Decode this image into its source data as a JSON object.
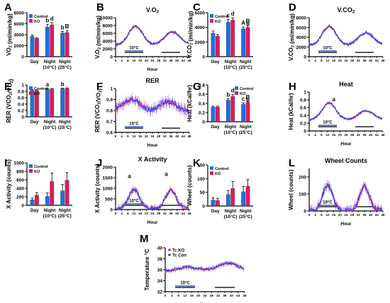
{
  "chart_data": [
    {
      "id": "A",
      "type": "bar",
      "panel_label": "A",
      "title": "",
      "ylabel": "VO₂ (ml/min/kg)",
      "ylim": [
        0,
        8000
      ],
      "yticks": [
        0,
        2000,
        4000,
        6000,
        8000
      ],
      "categories": [
        "Day",
        "Night (10°C)",
        "Night (25°C)"
      ],
      "series": [
        {
          "name": "Control",
          "values": [
            3700,
            5400,
            4300
          ],
          "errors": [
            250,
            500,
            300
          ]
        },
        {
          "name": "KO",
          "values": [
            3300,
            5800,
            4400
          ],
          "errors": [
            150,
            400,
            350
          ]
        }
      ],
      "annotations": [
        {
          "cat": 1,
          "s": 0,
          "text": "b"
        },
        {
          "cat": 1,
          "s": 1,
          "text": "d"
        },
        {
          "cat": 2,
          "s": 0,
          "text": "b"
        },
        {
          "cat": 2,
          "s": 1,
          "text": "B"
        }
      ],
      "legend": "top-left"
    },
    {
      "id": "B",
      "type": "line",
      "panel_label": "B",
      "title": "V.O₂",
      "ylabel": "V.O₂ (ml/min/kg)",
      "xlabel": "Hour",
      "ylim": [
        0,
        10000
      ],
      "yticks": [
        0,
        2000,
        4000,
        6000,
        8000,
        10000
      ],
      "xlim": [
        0,
        48
      ],
      "xticks": [
        0,
        4,
        8,
        12,
        16,
        20,
        24,
        28,
        32,
        36,
        40,
        44,
        48
      ],
      "base": 3000,
      "peaks": [
        {
          "c": 13,
          "w": 4.5,
          "h": 4800
        },
        {
          "c": 37,
          "w": 5,
          "h": 3300
        }
      ],
      "jitter": 450,
      "temp_label": "10°C",
      "cold_bar": [
        6,
        18
      ],
      "night_bars": [
        [
          6,
          18
        ],
        [
          30,
          42
        ]
      ],
      "annotations": []
    },
    {
      "id": "C",
      "type": "bar",
      "panel_label": "C",
      "title": "",
      "ylabel": "V.CO₂ (ml/min/kg)",
      "ylim": [
        0,
        6000
      ],
      "yticks": [
        0,
        2000,
        4000,
        6000
      ],
      "categories": [
        "Day",
        "Night (10°C)",
        "Night (25°C)"
      ],
      "series": [
        {
          "name": "Control",
          "values": [
            3200,
            4700,
            3800
          ],
          "errors": [
            300,
            400,
            250
          ]
        },
        {
          "name": "KO",
          "values": [
            2800,
            5000,
            4000
          ],
          "errors": [
            200,
            300,
            300
          ]
        }
      ],
      "annotations": [
        {
          "cat": 1,
          "s": 0,
          "text": "c"
        },
        {
          "cat": 1,
          "s": 1,
          "text": "d"
        },
        {
          "cat": 2,
          "s": 0,
          "text": "A"
        },
        {
          "cat": 2,
          "s": 1,
          "text": "B"
        },
        {
          "cat": 2,
          "s": 1,
          "text": "b",
          "below": true
        }
      ],
      "legend": "top-left"
    },
    {
      "id": "D",
      "type": "line",
      "panel_label": "D",
      "title": "V.CO₂",
      "ylabel": "V.CO₂ (ml/min/kg)",
      "xlabel": "",
      "ylim": [
        0,
        8000
      ],
      "yticks": [
        0,
        2000,
        4000,
        6000,
        8000
      ],
      "xlim": [
        0,
        48
      ],
      "xticks": [
        0,
        4,
        8,
        12,
        16,
        20,
        24,
        28,
        32,
        36,
        40,
        44,
        48
      ],
      "base": 2300,
      "peaks": [
        {
          "c": 13,
          "w": 4.5,
          "h": 3900
        },
        {
          "c": 37,
          "w": 5,
          "h": 2600
        }
      ],
      "jitter": 380,
      "temp_label": "10°C",
      "cold_bar": [
        6,
        18
      ],
      "night_bars": [
        [
          6,
          18
        ],
        [
          30,
          42
        ]
      ],
      "annotations": []
    },
    {
      "id": "E",
      "type": "bar",
      "panel_label": "E",
      "title": "",
      "ylabel": "RER (VCO₂/VO₂)",
      "ylim": [
        0,
        1.0
      ],
      "yticks": [
        0,
        0.2,
        0.4,
        0.6,
        0.8,
        1.0
      ],
      "categories": [
        "Day",
        "Night (10°C)",
        "Night (25°C)"
      ],
      "series": [
        {
          "name": "Control",
          "values": [
            0.84,
            0.87,
            0.88
          ],
          "errors": [
            0.02,
            0.02,
            0.02
          ]
        },
        {
          "name": "KO",
          "values": [
            0.82,
            0.87,
            0.89
          ],
          "errors": [
            0.02,
            0.02,
            0.02
          ]
        }
      ],
      "annotations": [
        {
          "cat": 1,
          "s": 0,
          "text": "a"
        },
        {
          "cat": 2,
          "s": 0,
          "text": "b"
        }
      ],
      "legend": "top-left"
    },
    {
      "id": "F",
      "type": "line",
      "panel_label": "F",
      "title": "RER",
      "ylabel": "RER (VCO₂/VO₂)",
      "xlabel": "Hour",
      "ylim": [
        0.6,
        1.0
      ],
      "yticks": [
        0.6,
        0.7,
        0.8,
        0.9,
        1.0
      ],
      "xlim": [
        0,
        48
      ],
      "xticks": [
        0,
        4,
        8,
        12,
        16,
        20,
        24,
        28,
        32,
        36,
        40,
        44,
        48
      ],
      "base": 0.78,
      "peaks": [
        {
          "c": 10,
          "w": 6,
          "h": 0.12
        },
        {
          "c": 34,
          "w": 6,
          "h": 0.1
        }
      ],
      "jitter": 0.05,
      "temp_label": "10°C",
      "cold_bar": [
        6,
        18
      ],
      "night_bars": [
        [
          6,
          18
        ],
        [
          30,
          42
        ]
      ],
      "annotations": []
    },
    {
      "id": "G",
      "type": "bar",
      "panel_label": "G",
      "title": "",
      "ylabel": "Heat (kCal/hr)",
      "ylim": [
        0,
        0.8
      ],
      "yticks": [
        0,
        0.2,
        0.4,
        0.6,
        0.8
      ],
      "categories": [
        "Day",
        "Night (10°C)",
        "Night (25°C)"
      ],
      "series": [
        {
          "name": "Control",
          "values": [
            0.32,
            0.47,
            0.38
          ],
          "errors": [
            0.02,
            0.03,
            0.03
          ]
        },
        {
          "name": "KO",
          "values": [
            0.32,
            0.55,
            0.42
          ],
          "errors": [
            0.02,
            0.04,
            0.03
          ]
        }
      ],
      "annotations": [
        {
          "cat": 1,
          "s": 0,
          "text": "b"
        },
        {
          "cat": 1,
          "s": 1,
          "text": "d"
        },
        {
          "cat": 2,
          "s": 0,
          "text": "c"
        },
        {
          "cat": 2,
          "s": 1,
          "text": "B"
        },
        {
          "cat": 2,
          "s": 1,
          "text": "b",
          "below": true
        }
      ],
      "legend": "top-right"
    },
    {
      "id": "H",
      "type": "line",
      "panel_label": "H",
      "title": "Heat",
      "ylabel": "Heat (kCal/hr)",
      "xlabel": "Hour",
      "ylim": [
        0,
        1.0
      ],
      "yticks": [
        0,
        0.2,
        0.4,
        0.6,
        0.8,
        1.0
      ],
      "xlim": [
        0,
        48
      ],
      "xticks": [
        0,
        4,
        8,
        12,
        16,
        20,
        24,
        28,
        32,
        36,
        40,
        44,
        48
      ],
      "base": 0.28,
      "peaks": [
        {
          "c": 13,
          "w": 4.5,
          "h": 0.44
        },
        {
          "c": 37,
          "w": 5,
          "h": 0.24
        }
      ],
      "jitter": 0.04,
      "temp_label": "10°C",
      "cold_bar": [
        6,
        18
      ],
      "night_bars": [
        [
          6,
          18
        ],
        [
          30,
          42
        ]
      ],
      "annotations": [
        {
          "x": 16,
          "y": 0.76,
          "text": "a"
        }
      ]
    },
    {
      "id": "I",
      "type": "bar",
      "panel_label": "I",
      "title": "",
      "ylabel": "X Activity (counts)",
      "ylim": [
        0,
        1000
      ],
      "yticks": [
        0,
        200,
        400,
        600,
        800,
        1000
      ],
      "categories": [
        "Day",
        "Night (10°C)",
        "Night (25°C)"
      ],
      "series": [
        {
          "name": "Control",
          "values": [
            130,
            210,
            340
          ],
          "errors": [
            40,
            80,
            150
          ]
        },
        {
          "name": "KO",
          "values": [
            240,
            560,
            590
          ],
          "errors": [
            60,
            200,
            180
          ]
        }
      ],
      "annotations": [],
      "legend": "top-left"
    },
    {
      "id": "J",
      "type": "line",
      "panel_label": "J",
      "title": "X Activity",
      "ylabel": "X Activity (counts)",
      "xlabel": "Hour",
      "ylim": [
        0,
        2000
      ],
      "yticks": [
        0,
        500,
        1000,
        1500,
        2000
      ],
      "xlim": [
        0,
        48
      ],
      "xticks": [
        0,
        4,
        8,
        12,
        16,
        20,
        24,
        28,
        32,
        36,
        40,
        44,
        48
      ],
      "base": 50,
      "peaks": [
        {
          "c": 12,
          "w": 3.5,
          "h": 900
        },
        {
          "c": 36,
          "w": 3.5,
          "h": 850
        }
      ],
      "jitter": 160,
      "temp_label": "10°C",
      "cold_bar": [
        6,
        18
      ],
      "night_bars": [
        [
          6,
          18
        ],
        [
          30,
          42
        ]
      ],
      "annotations": [
        {
          "x": 9,
          "y": 1480,
          "text": "a"
        },
        {
          "x": 33,
          "y": 1580,
          "text": "a"
        }
      ]
    },
    {
      "id": "K",
      "type": "bar",
      "panel_label": "K",
      "title": "",
      "ylabel": "Wheel (counts)",
      "ylim": [
        0,
        150
      ],
      "yticks": [
        0,
        50,
        100,
        150
      ],
      "categories": [
        "Day",
        "Night (10°C)",
        "Night (25°C)"
      ],
      "series": [
        {
          "name": "Control",
          "values": [
            22,
            42,
            52
          ],
          "errors": [
            8,
            15,
            20
          ]
        },
        {
          "name": "KO",
          "values": [
            20,
            64,
            72
          ],
          "errors": [
            8,
            25,
            25
          ]
        }
      ],
      "annotations": [],
      "legend": "top-left"
    },
    {
      "id": "L",
      "type": "line",
      "panel_label": "L",
      "title": "Wheel Counts",
      "ylabel": "Wheel (counts)",
      "xlabel": "Hour",
      "ylim": [
        0,
        250
      ],
      "yticks": [
        0,
        100,
        200
      ],
      "xlim": [
        0,
        48
      ],
      "xticks": [
        0,
        4,
        8,
        12,
        16,
        20,
        24,
        28,
        32,
        36,
        40,
        44,
        48
      ],
      "base": 3,
      "peaks": [
        {
          "c": 12,
          "w": 3.2,
          "h": 150
        },
        {
          "c": 36,
          "w": 3.2,
          "h": 140
        }
      ],
      "jitter": 28,
      "temp_label": "10°C",
      "cold_bar": [
        6,
        18
      ],
      "night_bars": [
        [
          6,
          18
        ],
        [
          30,
          42
        ]
      ],
      "annotations": []
    },
    {
      "id": "M",
      "type": "line",
      "panel_label": "M",
      "title": "",
      "ylabel": "Temperature °C",
      "xlabel": "Hour",
      "ylim": [
        32,
        40
      ],
      "yticks": [
        32,
        34,
        36,
        38,
        40
      ],
      "xlim": [
        0,
        48
      ],
      "xticks": [
        0,
        4,
        8,
        12,
        16,
        20,
        24,
        28,
        32,
        36,
        40,
        44,
        48
      ],
      "base": 35.8,
      "peaks": [
        {
          "c": 14,
          "w": 6,
          "h": 0.7
        },
        {
          "c": 38,
          "w": 6,
          "h": 1.4
        }
      ],
      "jitter": 0.45,
      "temp_label": "10°C",
      "cold_bar": [
        6,
        18
      ],
      "night_bars": [
        [
          6,
          18
        ],
        [
          30,
          42
        ]
      ],
      "annotations": [],
      "legend_entries": [
        "Tc KO",
        "Tc Con"
      ]
    }
  ],
  "legend": {
    "control": "Control",
    "ko": "KO"
  },
  "colors": {
    "control": "#1f6fe0",
    "ko": "#e0195f",
    "control_line": "#2a3fe0",
    "ko_line": "#f01a78",
    "night_bar": "#222222",
    "cold_bar": "#3b57d6"
  }
}
